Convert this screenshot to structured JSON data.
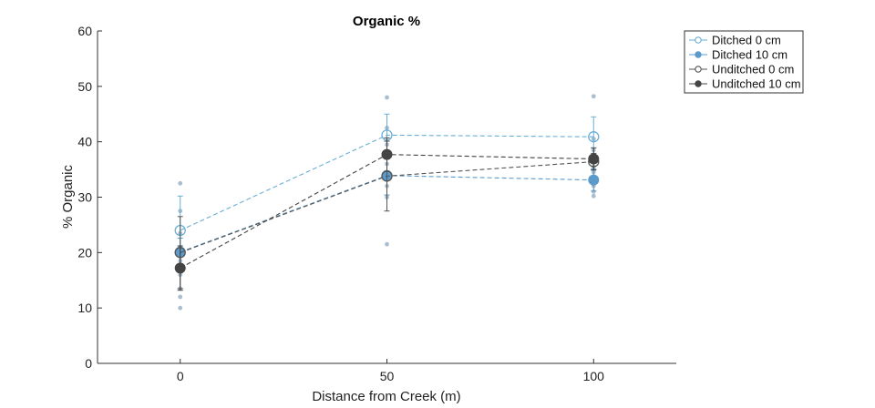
{
  "chart_data": {
    "type": "line",
    "title": "Organic %",
    "xlabel": "Distance from Creek (m)",
    "ylabel": "% Organic",
    "xlim": [
      -20,
      120
    ],
    "ylim": [
      0,
      60
    ],
    "x": [
      0,
      50,
      100
    ],
    "x_tick_labels": [
      "0",
      "50",
      "100"
    ],
    "y_ticks": [
      0,
      10,
      20,
      30,
      40,
      50,
      60
    ],
    "y_tick_labels": [
      "0",
      "10",
      "20",
      "30",
      "40",
      "50",
      "60"
    ],
    "grid": false,
    "legend_position": "top-right",
    "series": [
      {
        "name": "Ditched 0 cm",
        "values": [
          24,
          41.2,
          40.9
        ],
        "error": [
          6.2,
          3.8,
          3.6
        ],
        "color": "#6BAED6",
        "marker": "open-circle"
      },
      {
        "name": "Ditched 10 cm",
        "values": [
          20.1,
          33.9,
          33.1
        ],
        "error": [
          2.5,
          3.5,
          2.0
        ],
        "color": "#5B9BCB",
        "marker": "filled-circle"
      },
      {
        "name": "Unditched 0 cm",
        "values": [
          20.0,
          33.8,
          36.4
        ],
        "error": [
          6.5,
          6.3,
          1.5
        ],
        "color": "#555555",
        "marker": "open-circle"
      },
      {
        "name": "Unditched 10 cm",
        "values": [
          17.2,
          37.7,
          36.9
        ],
        "error": [
          4.0,
          3.0,
          2.0
        ],
        "color": "#444444",
        "marker": "filled-circle"
      }
    ],
    "raw_points": [
      {
        "x": 0,
        "y": 32.5
      },
      {
        "x": 0,
        "y": 27.5
      },
      {
        "x": 0,
        "y": 23.5
      },
      {
        "x": 0,
        "y": 21.0
      },
      {
        "x": 0,
        "y": 18.5
      },
      {
        "x": 0,
        "y": 16.0
      },
      {
        "x": 0,
        "y": 13.5
      },
      {
        "x": 0,
        "y": 12.0
      },
      {
        "x": 0,
        "y": 10.0
      },
      {
        "x": 50,
        "y": 48.0
      },
      {
        "x": 50,
        "y": 42.5
      },
      {
        "x": 50,
        "y": 39.5
      },
      {
        "x": 50,
        "y": 36.0
      },
      {
        "x": 50,
        "y": 34.5
      },
      {
        "x": 50,
        "y": 32.0
      },
      {
        "x": 50,
        "y": 30.0
      },
      {
        "x": 50,
        "y": 21.5
      },
      {
        "x": 100,
        "y": 48.2
      },
      {
        "x": 100,
        "y": 40.5
      },
      {
        "x": 100,
        "y": 38.5
      },
      {
        "x": 100,
        "y": 35.5
      },
      {
        "x": 100,
        "y": 34.5
      },
      {
        "x": 100,
        "y": 32.0
      },
      {
        "x": 100,
        "y": 31.0
      },
      {
        "x": 100,
        "y": 30.2
      }
    ]
  }
}
